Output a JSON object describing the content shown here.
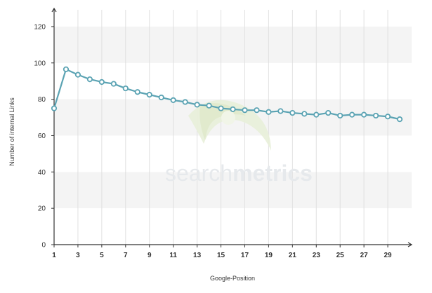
{
  "watermark": {
    "part1": "search",
    "part2": "metrics"
  },
  "colors": {
    "line": "#5ba3b3",
    "marker_fill": "#ffffff",
    "band": "#f4f4f4",
    "gridline": "#e0e0e0",
    "axis": "#333333",
    "watermark_green": "#dfe9c9"
  },
  "chart_data": {
    "type": "line",
    "xlabel": "Google-Position",
    "ylabel": "Number of internal Links",
    "ylim": [
      0,
      130
    ],
    "xlim": [
      1,
      31
    ],
    "yticks": [
      0,
      20,
      40,
      60,
      80,
      100,
      120
    ],
    "xticks": [
      1,
      3,
      5,
      7,
      9,
      11,
      13,
      15,
      17,
      19,
      21,
      23,
      25,
      27,
      29
    ],
    "grid": true,
    "x": [
      1,
      2,
      3,
      4,
      5,
      6,
      7,
      8,
      9,
      10,
      11,
      12,
      13,
      14,
      15,
      16,
      17,
      18,
      19,
      20,
      21,
      22,
      23,
      24,
      25,
      26,
      27,
      28,
      29,
      30
    ],
    "series": [
      {
        "values": [
          75,
          96.5,
          93.5,
          91,
          89.5,
          88.5,
          86,
          84,
          82.5,
          81,
          79.5,
          78.5,
          77,
          76.5,
          75,
          74.5,
          74,
          74,
          73,
          73.5,
          72.5,
          72,
          71.5,
          72.5,
          71,
          71.5,
          71.5,
          71,
          70.5,
          69
        ]
      }
    ]
  }
}
